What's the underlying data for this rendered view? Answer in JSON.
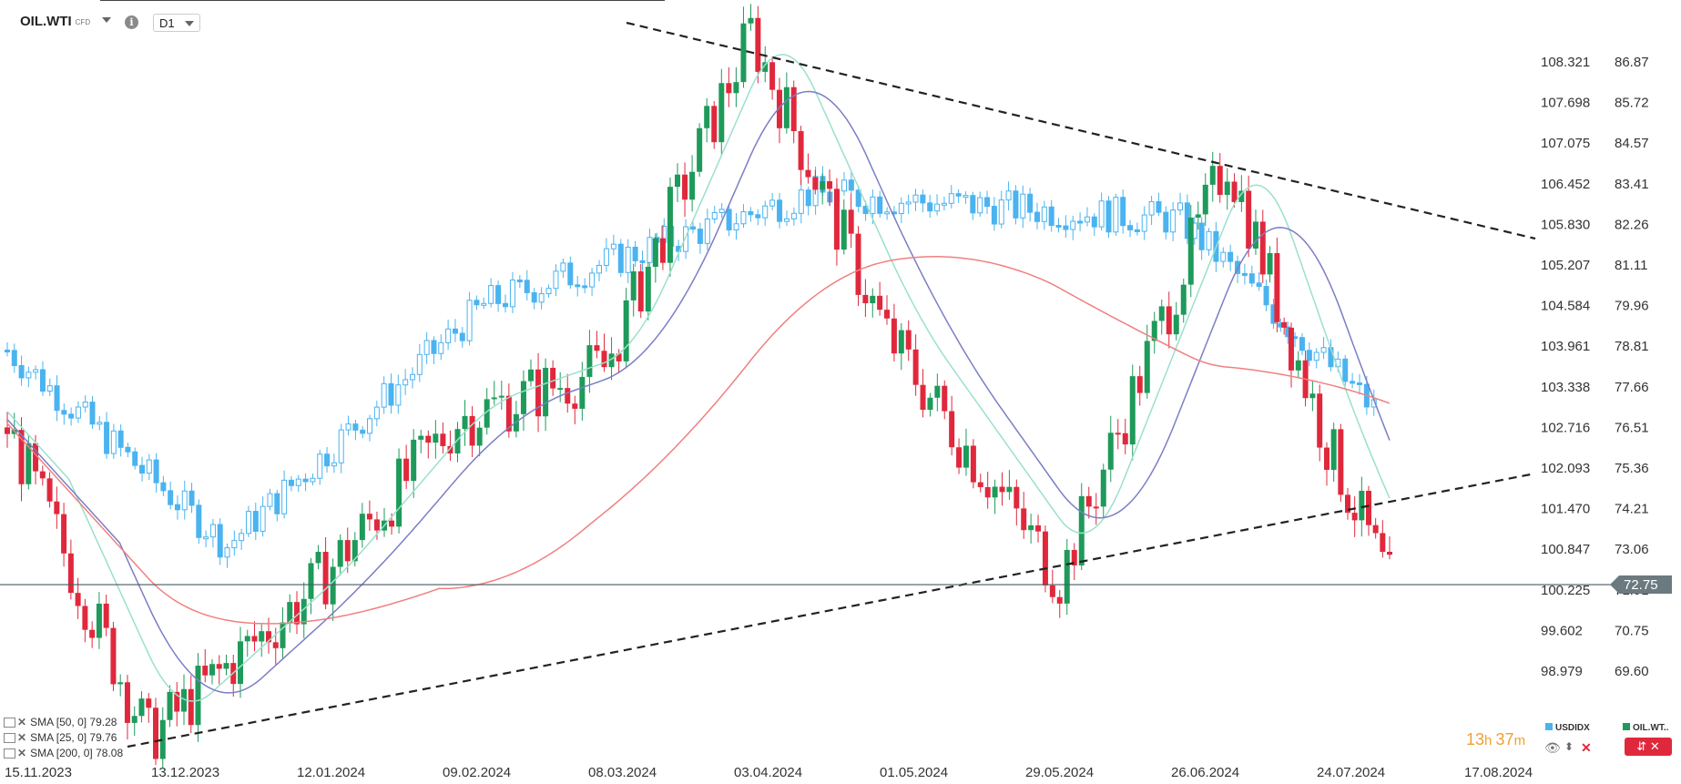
{
  "header": {
    "symbol": "OIL.WTI",
    "symbol_type": "CFD",
    "timeframe": "D1"
  },
  "legend": {
    "sma50": "SMA [50, 0] 79.28",
    "sma25": "SMA [25, 0] 79.76",
    "sma200": "SMA [200, 0] 78.08"
  },
  "footer": {
    "timer_hours": "13",
    "timer_h": "h ",
    "timer_minutes": "37",
    "timer_m": "m",
    "usdidx_label": "USDIDX",
    "oilwti_label": "OIL.WT..",
    "usdidx_color": "#4ab3f0",
    "oilwti_color": "#1e9a5a"
  },
  "chart_data": {
    "type": "candlestick",
    "primary_axis_labels": [
      "86.87",
      "85.72",
      "84.57",
      "83.41",
      "82.26",
      "81.11",
      "79.96",
      "78.81",
      "77.66",
      "76.51",
      "75.36",
      "74.21",
      "73.06",
      "71.91",
      "70.75",
      "69.60"
    ],
    "secondary_axis_labels": [
      "108.321",
      "107.698",
      "107.075",
      "106.452",
      "105.830",
      "105.207",
      "104.584",
      "103.961",
      "103.338",
      "102.716",
      "102.093",
      "101.470",
      "100.847",
      "100.225",
      "99.602",
      "98.979"
    ],
    "x_tick_labels": [
      "15.11.2023",
      "13.12.2023",
      "12.01.2024",
      "09.02.2024",
      "08.03.2024",
      "03.04.2024",
      "01.05.2024",
      "29.05.2024",
      "26.06.2024",
      "24.07.2024",
      "17.08.2024"
    ],
    "current_price": "72.75",
    "ylim_primary": [
      68.45,
      87.44
    ],
    "colors": {
      "up": "#1e9a5a",
      "down": "#e0283c",
      "usdidx": "#4ab3f0",
      "sma25": "#9be0cc",
      "sma50": "#7b7ec4",
      "sma200": "#f08080",
      "trendline": "#222222"
    },
    "series": [
      {
        "name": "OIL.WTI",
        "key_levels": [
          {
            "date": "2023-11-15",
            "close": 76.7
          },
          {
            "date": "2023-12-12",
            "close": 68.9
          },
          {
            "date": "2024-01-12",
            "close": 72.6
          },
          {
            "date": "2024-02-09",
            "close": 76.9
          },
          {
            "date": "2024-03-08",
            "close": 78.2
          },
          {
            "date": "2024-04-05",
            "close": 86.6
          },
          {
            "date": "2024-05-01",
            "close": 79.0
          },
          {
            "date": "2024-06-03",
            "close": 72.9
          },
          {
            "date": "2024-07-05",
            "close": 83.5
          },
          {
            "date": "2024-07-24",
            "close": 76.3
          },
          {
            "date": "2024-08-05",
            "close": 72.75
          }
        ]
      },
      {
        "name": "USDIDX",
        "key_levels": [
          {
            "date": "2023-11-15",
            "close": 103.9
          },
          {
            "date": "2023-12-27",
            "close": 100.9
          },
          {
            "date": "2024-02-14",
            "close": 104.6
          },
          {
            "date": "2024-04-16",
            "close": 106.3
          },
          {
            "date": "2024-06-26",
            "close": 105.9
          },
          {
            "date": "2024-08-02",
            "close": 103.0
          }
        ]
      }
    ]
  }
}
